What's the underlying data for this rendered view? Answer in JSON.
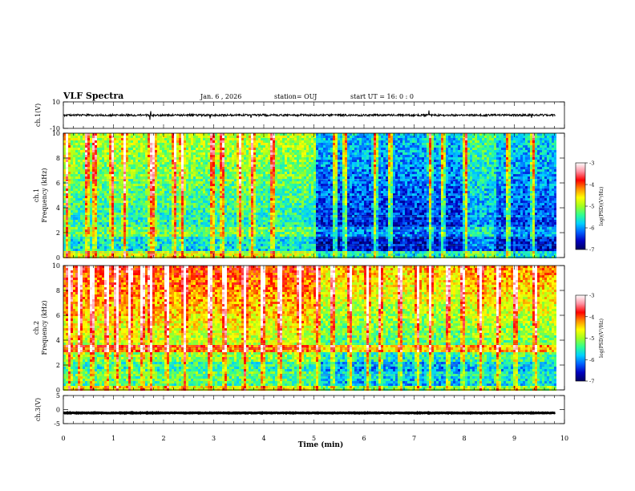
{
  "header": {
    "title": "VLF Spectra",
    "date": "Jan. 6 , 2026",
    "station": "station= OUJ",
    "start": "start UT =  16: 0  : 0"
  },
  "colorbar": {
    "label": "log(PSD)(V²/Hz)",
    "ticks": [
      "-3",
      "-4",
      "-5",
      "-6",
      "-7"
    ],
    "colors": [
      "#000060",
      "#0000c0",
      "#0060ff",
      "#00d0ff",
      "#30ff90",
      "#a0ff20",
      "#ffff00",
      "#ff9000",
      "#ff0000",
      "#ff90a0",
      "#ffffff"
    ]
  },
  "chart_data": [
    {
      "type": "line",
      "id": "ch1",
      "ylabel": "ch.1(V)",
      "ylim": [
        -10,
        10
      ],
      "yticks": [
        "10",
        "-10"
      ],
      "xlim": [
        0,
        10
      ],
      "baseline": 0,
      "noise_amplitude": 1.5,
      "spikes": [
        {
          "x": 1.72,
          "y": -3.5
        },
        {
          "x": 1.74,
          "y": 3.0
        },
        {
          "x": 2.93,
          "y": -2.5
        },
        {
          "x": 3.75,
          "y": -2.0
        },
        {
          "x": 7.3,
          "y": 3.5
        },
        {
          "x": 9.35,
          "y": -2.0
        }
      ]
    },
    {
      "type": "heatmap",
      "id": "ch1-spec",
      "ylabel_top": "ch.1",
      "ylabel": "Frequency (kHz)",
      "ylim": [
        0,
        10
      ],
      "yticks": [
        "0",
        "2",
        "4",
        "6",
        "8",
        "10"
      ],
      "xlim": [
        0,
        10
      ],
      "zlim": [
        -7,
        -3
      ],
      "background_levels": [
        {
          "x_from": 0,
          "x_to": 5.0,
          "level": -5.6
        },
        {
          "x_from": 5.0,
          "x_to": 8.0,
          "level": -6.5
        },
        {
          "x_from": 8.0,
          "x_to": 8.6,
          "level": -6.0
        },
        {
          "x_from": 8.6,
          "x_to": 9.8,
          "level": -6.4
        }
      ],
      "bursts": [
        0.05,
        0.45,
        0.6,
        0.95,
        1.2,
        1.72,
        1.78,
        2.2,
        2.35,
        2.95,
        3.15,
        3.5,
        3.75,
        4.15,
        5.4,
        5.6,
        6.2,
        6.5,
        7.3,
        7.55,
        8.0,
        8.85,
        9.35
      ]
    },
    {
      "type": "heatmap",
      "id": "ch2-spec",
      "ylabel_top": "ch.2",
      "ylabel": "Frequency (kHz)",
      "ylim": [
        0,
        10
      ],
      "yticks": [
        "0",
        "2",
        "4",
        "6",
        "8",
        "10"
      ],
      "xlim": [
        0,
        10
      ],
      "zlim": [
        -7,
        -3
      ],
      "background_levels": [
        {
          "x_from": 0,
          "x_to": 5.0,
          "level": -5.0
        },
        {
          "x_from": 5.0,
          "x_to": 8.0,
          "level": -5.5
        },
        {
          "x_from": 8.0,
          "x_to": 9.8,
          "level": -5.3
        }
      ],
      "bursts": [
        0.1,
        0.3,
        0.55,
        0.85,
        1.05,
        1.3,
        1.55,
        1.72,
        2.05,
        2.4,
        2.9,
        3.2,
        3.6,
        3.95,
        4.3,
        4.7,
        5.05,
        5.35,
        5.7,
        6.05,
        6.3,
        6.7,
        7.05,
        7.3,
        7.65,
        7.95,
        8.3,
        8.65,
        9.0,
        9.4
      ]
    },
    {
      "type": "line",
      "id": "ch3",
      "ylabel": "ch.3(V)",
      "ylim": [
        -5,
        5
      ],
      "yticks": [
        "5",
        "0",
        "-5"
      ],
      "xlim": [
        0,
        10
      ],
      "xlabel": "Time (min)",
      "xticks": [
        "0",
        "1",
        "2",
        "3",
        "4",
        "5",
        "6",
        "7",
        "8",
        "9",
        "10"
      ],
      "baseline": -1.2,
      "noise_amplitude": 0.2
    }
  ]
}
